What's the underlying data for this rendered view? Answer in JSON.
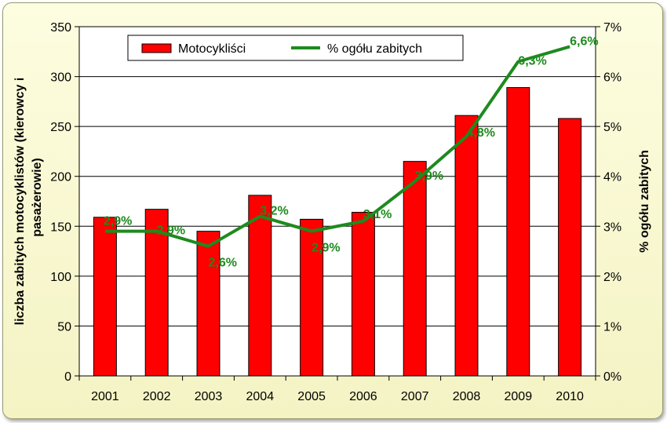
{
  "chart_data": {
    "type": "bar",
    "categories": [
      "2001",
      "2002",
      "2003",
      "2004",
      "2005",
      "2006",
      "2007",
      "2008",
      "2009",
      "2010"
    ],
    "series": [
      {
        "name": "Motocykliści",
        "axis": "left",
        "kind": "bar",
        "color": "#ff0000",
        "values": [
          159,
          167,
          145,
          181,
          157,
          164,
          215,
          261,
          289,
          258
        ]
      },
      {
        "name": "% ogółu zabitych",
        "axis": "right",
        "kind": "line",
        "color": "#1e8a1e",
        "values": [
          2.9,
          2.9,
          2.6,
          3.2,
          2.9,
          3.1,
          3.9,
          4.8,
          6.3,
          6.6
        ],
        "labels": [
          "2,9%",
          "2,9%",
          "2,6%",
          "3,2%",
          "2,9%",
          "3,1%",
          "3,9%",
          "4,8%",
          "6,3%",
          "6,6%"
        ]
      }
    ],
    "ylabel": "liczba zabitych motocyklistów (kierowcy i pasażerowie)",
    "ylabel_lines": [
      "liczba zabitych motocyklistów (kierowcy i",
      "pasażerowie)"
    ],
    "y2label": "% ogółu zabitych",
    "ylim": [
      0,
      350
    ],
    "y_ticks": [
      0,
      50,
      100,
      150,
      200,
      250,
      300,
      350
    ],
    "y2lim": [
      0,
      7
    ],
    "y2_ticks": [
      "0%",
      "1%",
      "2%",
      "3%",
      "4%",
      "5%",
      "6%",
      "7%"
    ],
    "grid": true,
    "legend_position": "top-left"
  }
}
